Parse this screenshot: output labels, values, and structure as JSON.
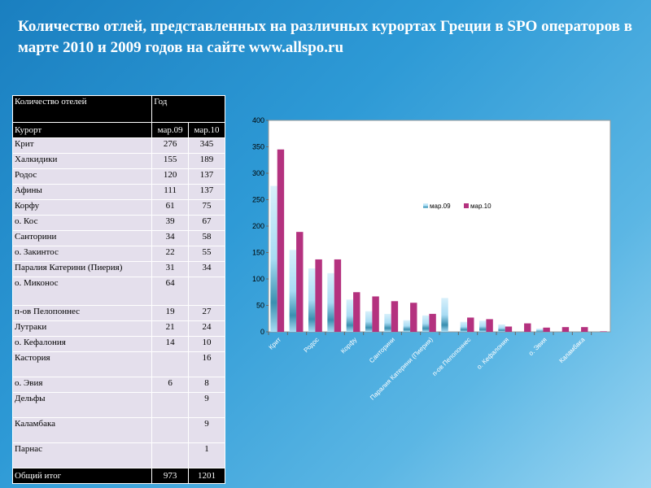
{
  "title": "Количество отлей, представленных на различных курортах Греции в SPO операторов в марте 2010 и 2009 годов на сайте www.allspo.ru",
  "table": {
    "header1": [
      "Количество отелей",
      "Год"
    ],
    "header2": [
      "Курорт",
      "мар.09",
      "мар.10"
    ],
    "rows": [
      [
        "Крит",
        "276",
        "345"
      ],
      [
        "Халкидики",
        "155",
        "189"
      ],
      [
        "Родос",
        "120",
        "137"
      ],
      [
        "Афины",
        "111",
        "137"
      ],
      [
        "Корфу",
        "61",
        "75"
      ],
      [
        " о. Кос",
        "39",
        "67"
      ],
      [
        "Санторини",
        "34",
        "58"
      ],
      [
        "о. Закинтос",
        "22",
        "55"
      ],
      [
        "Паралия Катерини (Пиерия)",
        "31",
        "34"
      ],
      [
        "о. Миконос",
        "64",
        ""
      ],
      [
        "п-ов Пелопоннес",
        "19",
        "27"
      ],
      [
        "Лутраки",
        "21",
        "24"
      ],
      [
        "о. Кефалония",
        "14",
        "10"
      ],
      [
        "Кастория",
        "",
        "16"
      ],
      [
        "о. Эвия",
        "6",
        "8"
      ],
      [
        "Дельфы",
        "",
        "9"
      ],
      [
        "Каламбака",
        "",
        "9"
      ],
      [
        "Парнас",
        "",
        "1"
      ]
    ],
    "total": [
      "Общий итог",
      "973",
      "1201"
    ]
  },
  "chart_data": {
    "type": "bar",
    "categories": [
      "Крит",
      "Халкидики",
      "Родос",
      "Афины",
      "Корфу",
      "о. Кос",
      "Санторини",
      "о. Закинтос",
      "Паралия Катерини (Пиерия)",
      "о. Миконос",
      "п-ов Пелопоннес",
      "Лутраки",
      "о. Кефалония",
      "Кастория",
      "о. Эвия",
      "Дельфы",
      "Каламбака",
      "Парнас"
    ],
    "shown_tick_labels": [
      "Крит",
      "Родос",
      "Корфу",
      "Санторини",
      "Паралия Катерини (Пиерия)",
      "п-ов Пелопоннес",
      "о. Кефалония",
      "о. Эвия",
      "Каламбака"
    ],
    "series": [
      {
        "name": "мар.09",
        "values": [
          276,
          155,
          120,
          111,
          61,
          39,
          34,
          22,
          31,
          64,
          19,
          21,
          14,
          0,
          6,
          0,
          0,
          0
        ],
        "color": "#a8dcf4"
      },
      {
        "name": "мар.10",
        "values": [
          345,
          189,
          137,
          137,
          75,
          67,
          58,
          55,
          34,
          0,
          27,
          24,
          10,
          16,
          8,
          9,
          9,
          1
        ],
        "color": "#b4327f"
      }
    ],
    "ylim": [
      0,
      400
    ],
    "yticks": [
      0,
      50,
      100,
      150,
      200,
      250,
      300,
      350,
      400
    ],
    "grid": false,
    "legend": "center-right"
  }
}
